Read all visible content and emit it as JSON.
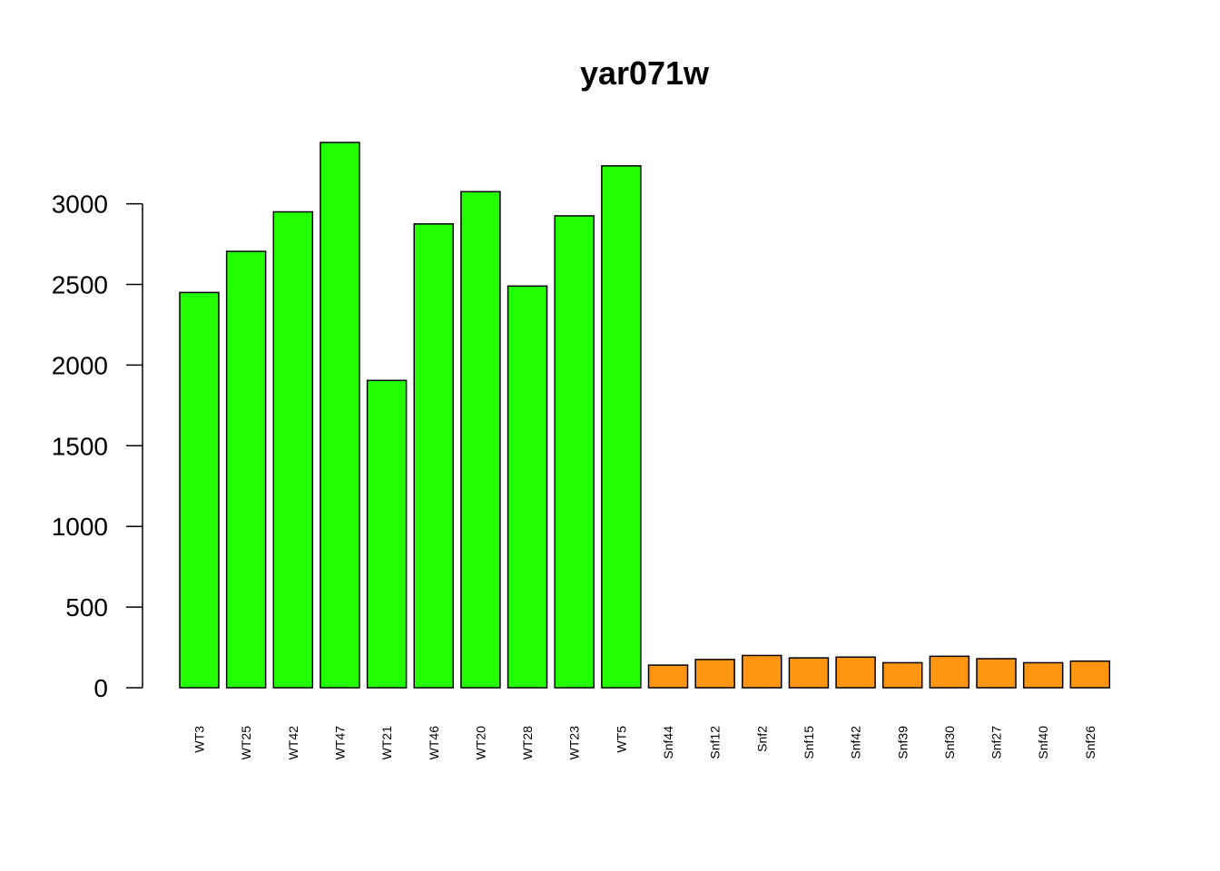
{
  "chart_data": {
    "type": "bar",
    "title": "yar071w",
    "xlabel": "",
    "ylabel": "",
    "ylim": [
      0,
      3400
    ],
    "yticks": [
      0,
      500,
      1000,
      1500,
      2000,
      2500,
      3000
    ],
    "ytick_labels": [
      "0",
      "500",
      "1000",
      "1500",
      "2000",
      "2500",
      "3000"
    ],
    "categories": [
      "WT3",
      "WT25",
      "WT42",
      "WT47",
      "WT21",
      "WT46",
      "WT20",
      "WT28",
      "WT23",
      "WT5",
      "Snf44",
      "Snf12",
      "Snf2",
      "Snf15",
      "Snf42",
      "Snf39",
      "Snf30",
      "Snf27",
      "Snf40",
      "Snf26"
    ],
    "values": [
      2450,
      2705,
      2950,
      3380,
      1905,
      2875,
      3075,
      2490,
      2925,
      3235,
      140,
      175,
      200,
      185,
      190,
      155,
      195,
      180,
      155,
      165
    ],
    "groups": [
      "WT",
      "WT",
      "WT",
      "WT",
      "WT",
      "WT",
      "WT",
      "WT",
      "WT",
      "WT",
      "Snf",
      "Snf",
      "Snf",
      "Snf",
      "Snf",
      "Snf",
      "Snf",
      "Snf",
      "Snf",
      "Snf"
    ],
    "colors": {
      "WT": "#22ff00",
      "Snf": "#ff9510",
      "border": "#000000"
    },
    "grid": false,
    "legend": "none"
  }
}
